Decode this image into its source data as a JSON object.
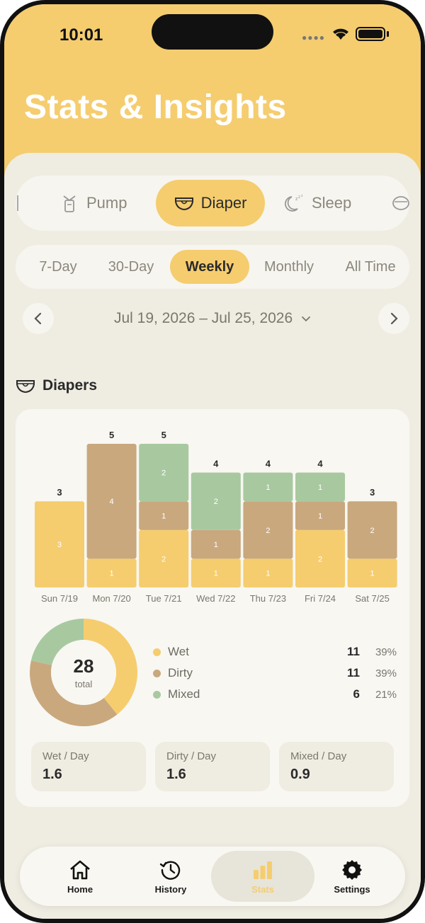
{
  "status_bar": {
    "time": "10:01"
  },
  "header": {
    "title": "Stats & Insights"
  },
  "category_tabs": [
    {
      "label": "Pump",
      "icon": "breast-pump-icon"
    },
    {
      "label": "Diaper",
      "icon": "diaper-icon",
      "active": true
    },
    {
      "label": "Sleep",
      "icon": "sleep-icon"
    }
  ],
  "range_tabs": [
    {
      "label": "7-Day"
    },
    {
      "label": "30-Day"
    },
    {
      "label": "Weekly",
      "active": true
    },
    {
      "label": "Monthly"
    },
    {
      "label": "All Time"
    }
  ],
  "date_nav": {
    "label": "Jul 19, 2026 – Jul 25, 2026",
    "dropdown_icon": "chevron-down-icon",
    "prev_icon": "chevron-left-icon",
    "next_icon": "chevron-right-icon"
  },
  "section": {
    "title": "Diapers",
    "icon": "diaper-icon"
  },
  "colors": {
    "wet": "#f5cd6f",
    "dirty": "#c9a87e",
    "mixed": "#a8c9a0",
    "accent": "#f5cd6f",
    "background": "#efece2"
  },
  "chart_data": {
    "type": "bar",
    "stacked": true,
    "categories": [
      "Sun 7/19",
      "Mon 7/20",
      "Tue 7/21",
      "Wed 7/22",
      "Thu 7/23",
      "Fri 7/24",
      "Sat 7/25"
    ],
    "series": [
      {
        "name": "Wet",
        "values": [
          3,
          1,
          2,
          1,
          1,
          2,
          1
        ]
      },
      {
        "name": "Dirty",
        "values": [
          0,
          4,
          1,
          1,
          2,
          1,
          2
        ]
      },
      {
        "name": "Mixed",
        "values": [
          0,
          0,
          2,
          2,
          1,
          1,
          0
        ]
      }
    ],
    "totals": [
      3,
      5,
      5,
      4,
      4,
      4,
      3
    ],
    "ylim": [
      0,
      5
    ]
  },
  "summary": {
    "total": "28",
    "total_label": "total",
    "legend": [
      {
        "name": "Wet",
        "count": "11",
        "pct": "39%"
      },
      {
        "name": "Dirty",
        "count": "11",
        "pct": "39%"
      },
      {
        "name": "Mixed",
        "count": "6",
        "pct": "21%"
      }
    ],
    "averages": [
      {
        "label": "Wet / Day",
        "value": "1.6"
      },
      {
        "label": "Dirty / Day",
        "value": "1.6"
      },
      {
        "label": "Mixed / Day",
        "value": "0.9"
      }
    ]
  },
  "tabbar": [
    {
      "label": "Home",
      "icon": "home-icon"
    },
    {
      "label": "History",
      "icon": "history-icon"
    },
    {
      "label": "Stats",
      "icon": "stats-icon",
      "active": true
    },
    {
      "label": "Settings",
      "icon": "gear-icon"
    }
  ]
}
